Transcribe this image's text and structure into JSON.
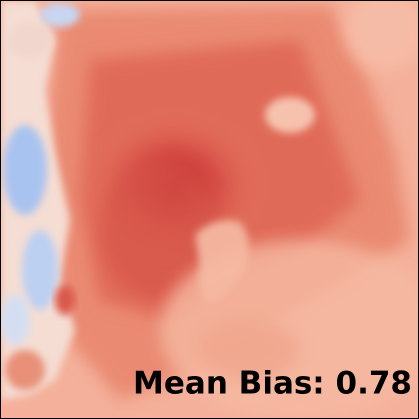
{
  "map": {
    "annotation": "Mean Bias: 0.78"
  }
}
